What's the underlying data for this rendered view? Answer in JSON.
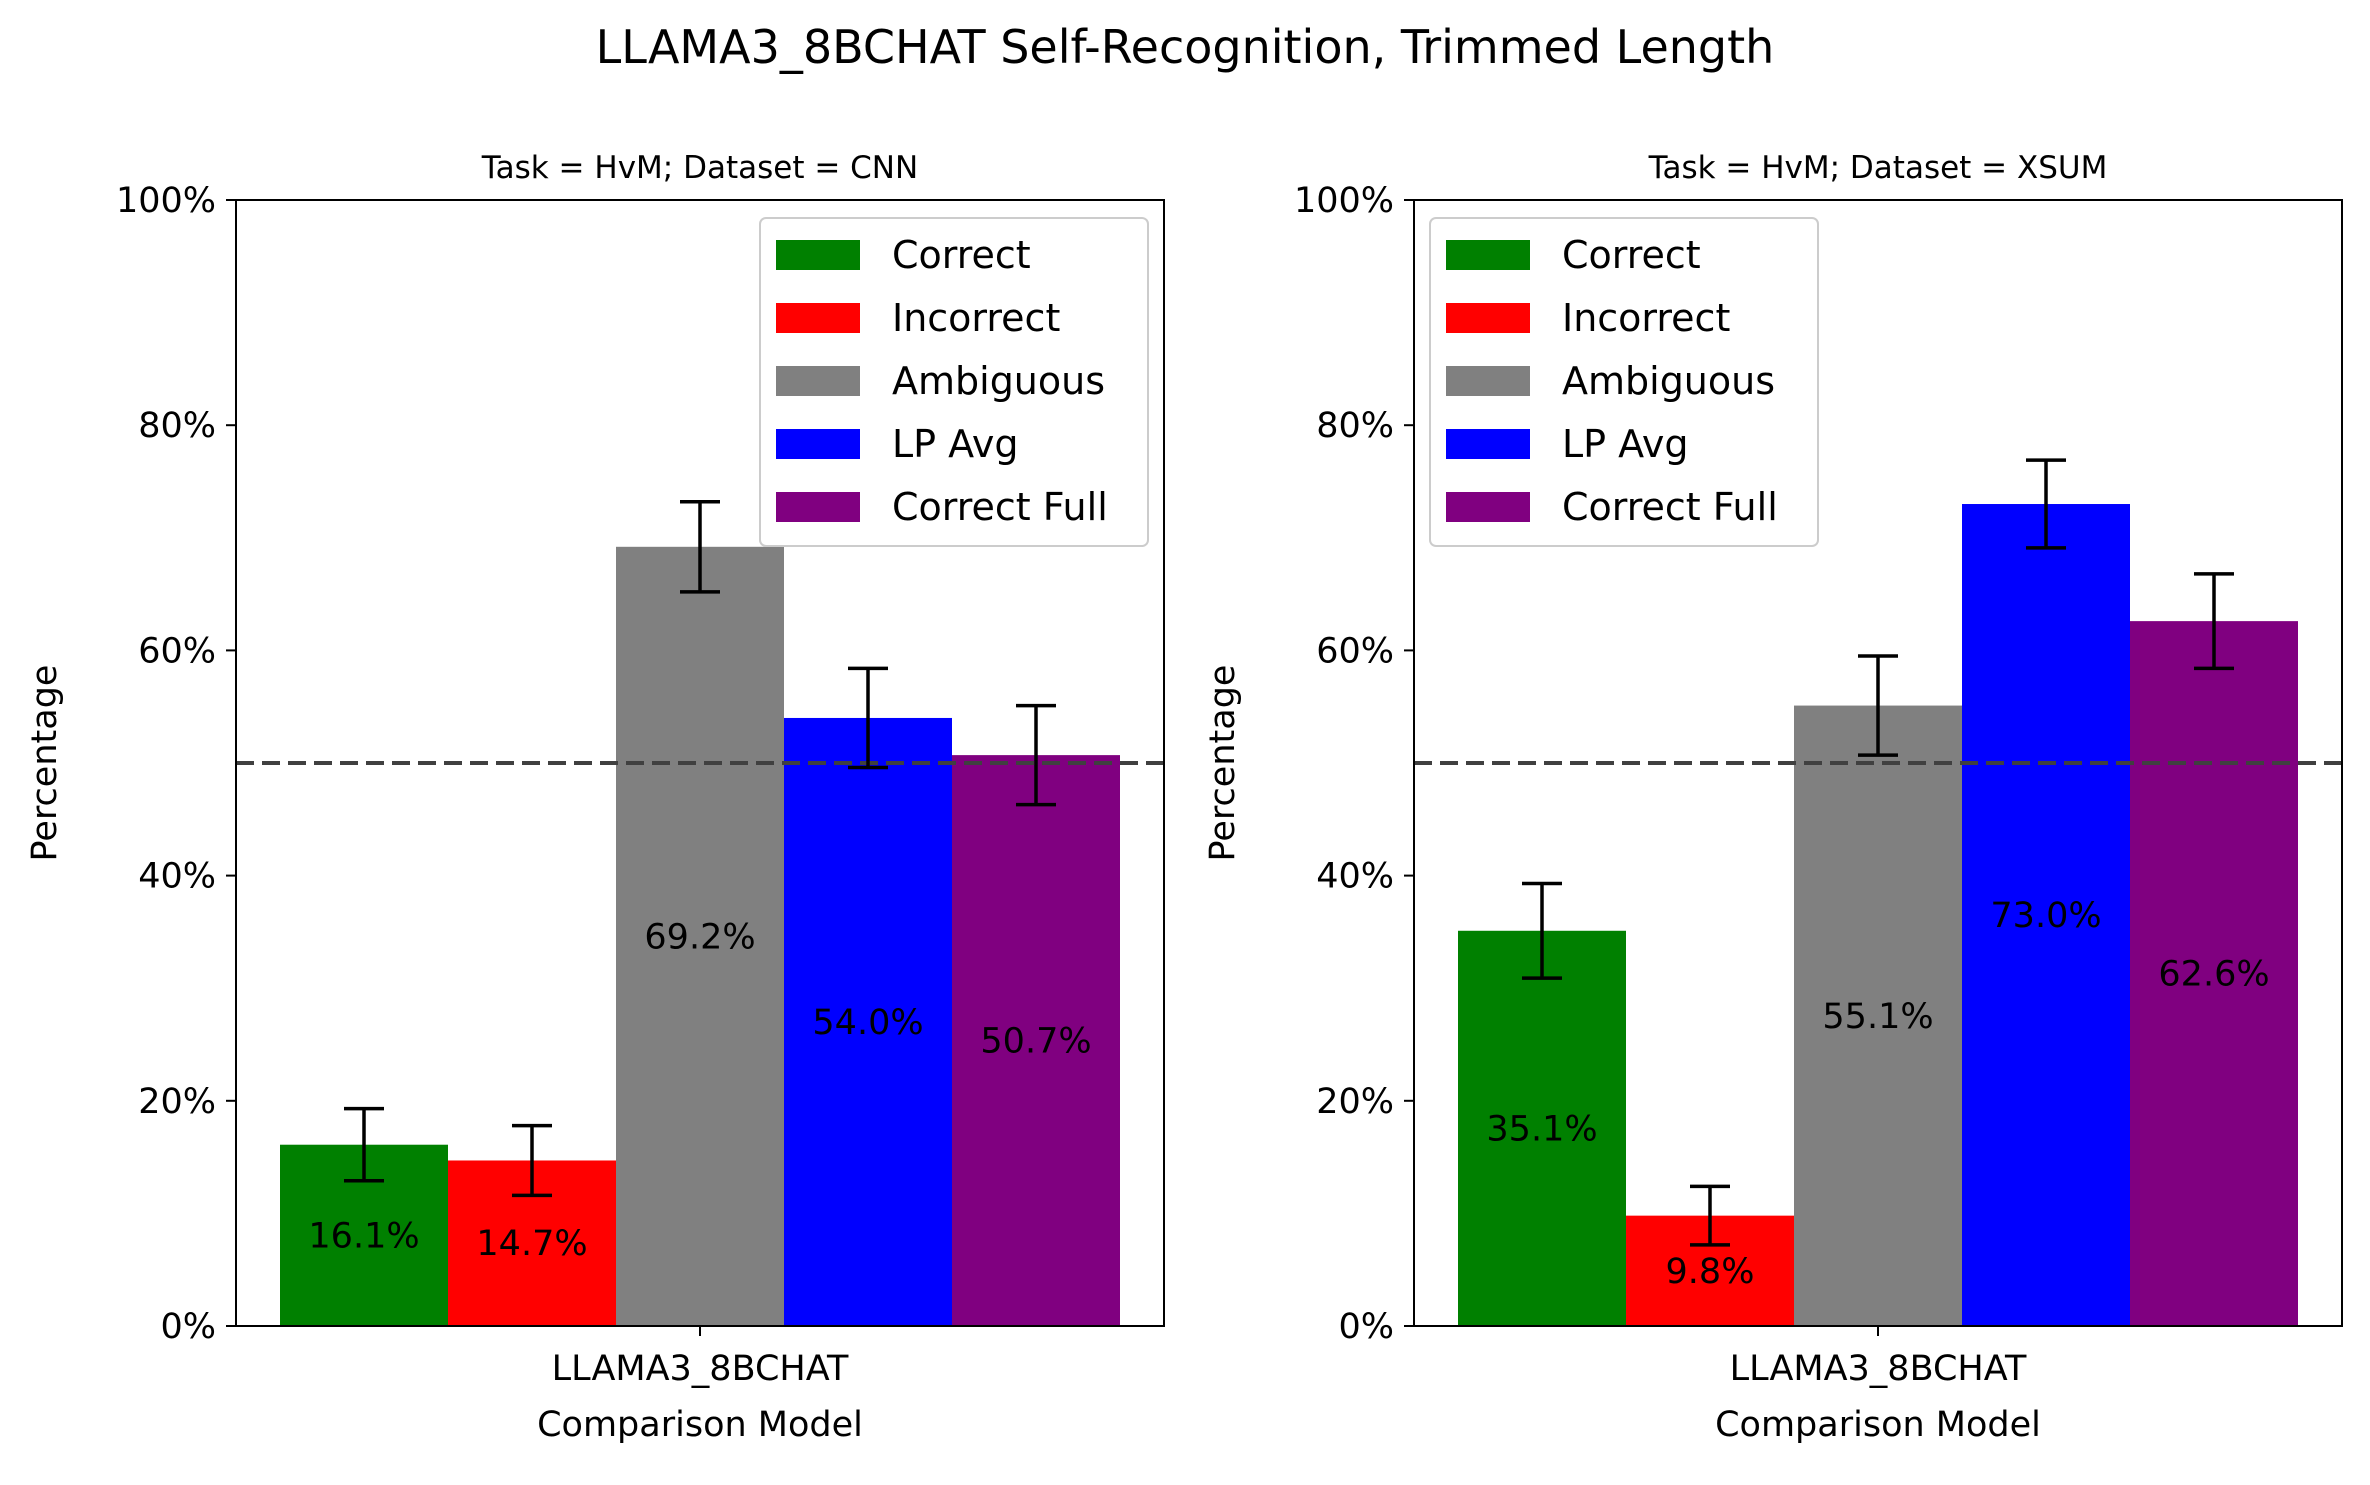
{
  "figure": {
    "title": "LLAMA3_8BCHAT Self-Recognition, Trimmed Length"
  },
  "legend": {
    "entries": [
      "Correct",
      "Incorrect",
      "Ambiguous",
      "LP Avg",
      "Correct Full"
    ]
  },
  "colors": {
    "Correct": "#008000",
    "Incorrect": "#ff0000",
    "Ambiguous": "#808080",
    "LP Avg": "#0000ff",
    "Correct Full": "#800080",
    "reference_line": "#404040"
  },
  "chart_data": [
    {
      "type": "bar",
      "title": "Task = HvM;  Dataset = CNN",
      "xlabel": "Comparison Model",
      "ylabel": "Percentage",
      "categories": [
        "LLAMA3_8BCHAT"
      ],
      "ylim": [
        0,
        100
      ],
      "yticks": [
        "0%",
        "20%",
        "40%",
        "60%",
        "80%",
        "100%"
      ],
      "reference_line": 50,
      "legend_position": "upper right",
      "series": [
        {
          "name": "Correct",
          "values": [
            16.1
          ],
          "error": [
            3.2
          ],
          "label": "16.1%"
        },
        {
          "name": "Incorrect",
          "values": [
            14.7
          ],
          "error": [
            3.1
          ],
          "label": "14.7%"
        },
        {
          "name": "Ambiguous",
          "values": [
            69.2
          ],
          "error": [
            4.0
          ],
          "label": "69.2%"
        },
        {
          "name": "LP Avg",
          "values": [
            54.0
          ],
          "error": [
            4.4
          ],
          "label": "54.0%"
        },
        {
          "name": "Correct Full",
          "values": [
            50.7
          ],
          "error": [
            4.4
          ],
          "label": "50.7%"
        }
      ]
    },
    {
      "type": "bar",
      "title": "Task = HvM;  Dataset = XSUM",
      "xlabel": "Comparison Model",
      "ylabel": "Percentage",
      "categories": [
        "LLAMA3_8BCHAT"
      ],
      "ylim": [
        0,
        100
      ],
      "yticks": [
        "0%",
        "20%",
        "40%",
        "60%",
        "80%",
        "100%"
      ],
      "reference_line": 50,
      "legend_position": "upper left",
      "series": [
        {
          "name": "Correct",
          "values": [
            35.1
          ],
          "error": [
            4.2
          ],
          "label": "35.1%"
        },
        {
          "name": "Incorrect",
          "values": [
            9.8
          ],
          "error": [
            2.6
          ],
          "label": "9.8%"
        },
        {
          "name": "Ambiguous",
          "values": [
            55.1
          ],
          "error": [
            4.4
          ],
          "label": "55.1%"
        },
        {
          "name": "LP Avg",
          "values": [
            73.0
          ],
          "error": [
            3.9
          ],
          "label": "73.0%"
        },
        {
          "name": "Correct Full",
          "values": [
            62.6
          ],
          "error": [
            4.2
          ],
          "label": "62.6%"
        }
      ]
    }
  ]
}
